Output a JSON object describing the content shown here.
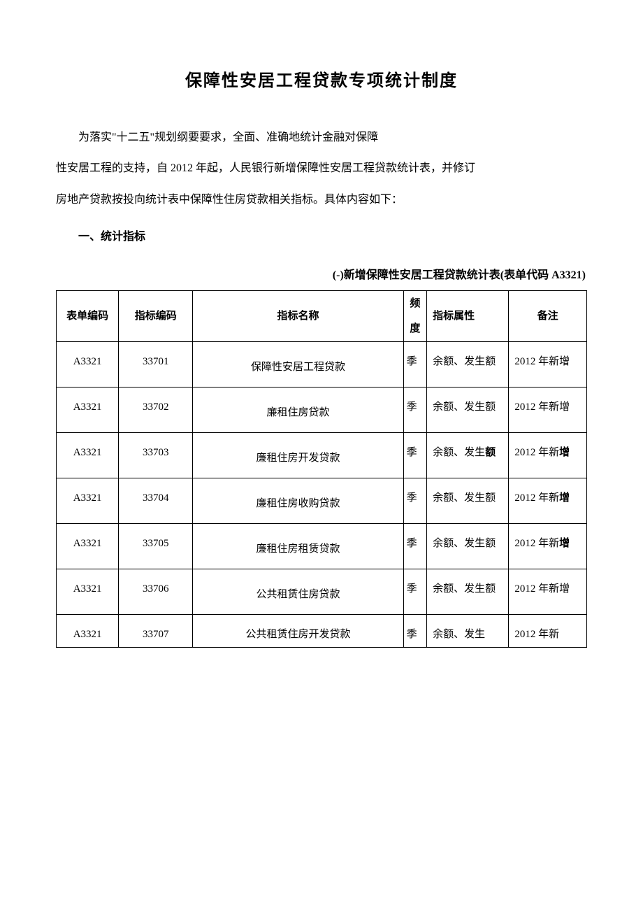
{
  "document": {
    "title": "保障性安居工程贷款专项统计制度",
    "para1_line1": "为落实\"十二五\"规划纲要要求，全面、准确地统计金融对保障",
    "para1_line2": "性安居工程的支持，自 2012 年起，人民银行新增保障性安居工程贷款统计表，并修订",
    "para1_line3": "房地产贷款按投向统计表中保障性住房贷款相关指标。具体内容如下：",
    "section_heading": "一、统计指标",
    "table_caption": "(-)新增保障性安居工程贷款统计表(表单代码 A3321)"
  },
  "colors": {
    "background": "#ffffff",
    "text": "#000000",
    "border": "#000000"
  },
  "typography": {
    "title_fontsize": 24,
    "body_fontsize": 16,
    "table_fontsize": 15,
    "font_family": "SimSun"
  },
  "table": {
    "headers": {
      "form_code": "表单编码",
      "indicator_code": "指标编码",
      "indicator_name": "指标名称",
      "frequency": "频度",
      "attribute": "指标属性",
      "remark": "备注"
    },
    "col_widths": {
      "form_code": 80,
      "indicator_code": 95,
      "indicator_name": 270,
      "frequency": 30,
      "attribute": 105,
      "remark": 100
    },
    "rows": [
      {
        "form_code": "A3321",
        "indicator_code": "33701",
        "indicator_name": "保障性安居工程贷款",
        "frequency": "季",
        "attribute": "余额、发生额",
        "remark": "2012 年新增",
        "attr_bold_last": false,
        "remark_bold_last": false
      },
      {
        "form_code": "A3321",
        "indicator_code": "33702",
        "indicator_name": "廉租住房贷款",
        "frequency": "季",
        "attribute": "余额、发生额",
        "remark": "2012 年新增",
        "attr_bold_last": false,
        "remark_bold_last": false
      },
      {
        "form_code": "A3321",
        "indicator_code": "33703",
        "indicator_name": "廉租住房开发贷款",
        "frequency": "季",
        "attribute": "余额、发生额",
        "remark": "2012 年新增",
        "attr_bold_last": true,
        "remark_bold_last": true
      },
      {
        "form_code": "A3321",
        "indicator_code": "33704",
        "indicator_name": "廉租住房收购贷款",
        "frequency": "季",
        "attribute": "余额、发生额",
        "remark": "2012 年新增",
        "attr_bold_last": false,
        "remark_bold_last": true
      },
      {
        "form_code": "A3321",
        "indicator_code": "33705",
        "indicator_name": "廉租住房租赁贷款",
        "frequency": "季",
        "attribute": "余额、发生额",
        "remark": "2012 年新增",
        "attr_bold_last": false,
        "remark_bold_last": true
      },
      {
        "form_code": "A3321",
        "indicator_code": "33706",
        "indicator_name": "公共租赁住房贷款",
        "frequency": "季",
        "attribute": "余额、发生额",
        "remark": "2012 年新增",
        "attr_bold_last": false,
        "remark_bold_last": false
      },
      {
        "form_code": "A3321",
        "indicator_code": "33707",
        "indicator_name": "公共租赁住房开发贷款",
        "frequency": "季",
        "attribute": "余额、发生",
        "remark": "2012 年新",
        "attr_bold_last": false,
        "remark_bold_last": false
      }
    ]
  }
}
